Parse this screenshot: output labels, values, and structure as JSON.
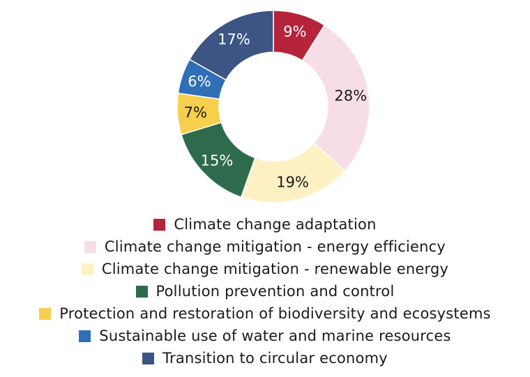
{
  "chart_data": {
    "type": "pie",
    "variant": "donut",
    "legend_position": "bottom",
    "categories": [
      "Climate change adaptation",
      "Climate change mitigation - energy efficiency",
      "Climate change mitigation - renewable energy",
      "Pollution prevention and control",
      "Protection and restoration of biodiversity and ecosystems",
      "Sustainable use of water and marine resources",
      "Transition to circular economy"
    ],
    "values": [
      9,
      28,
      19,
      15,
      7,
      6,
      17
    ],
    "labels": [
      "9%",
      "28%",
      "19%",
      "15%",
      "7%",
      "6%",
      "17%"
    ],
    "colors": [
      "#b5243a",
      "#f7dde6",
      "#fdf1c3",
      "#2e6b4d",
      "#f6cf4c",
      "#2f6fb5",
      "#3c5584"
    ],
    "label_colors": [
      "#ffffff",
      "#1a1a1a",
      "#1a1a1a",
      "#ffffff",
      "#1a1a1a",
      "#ffffff",
      "#ffffff"
    ]
  }
}
